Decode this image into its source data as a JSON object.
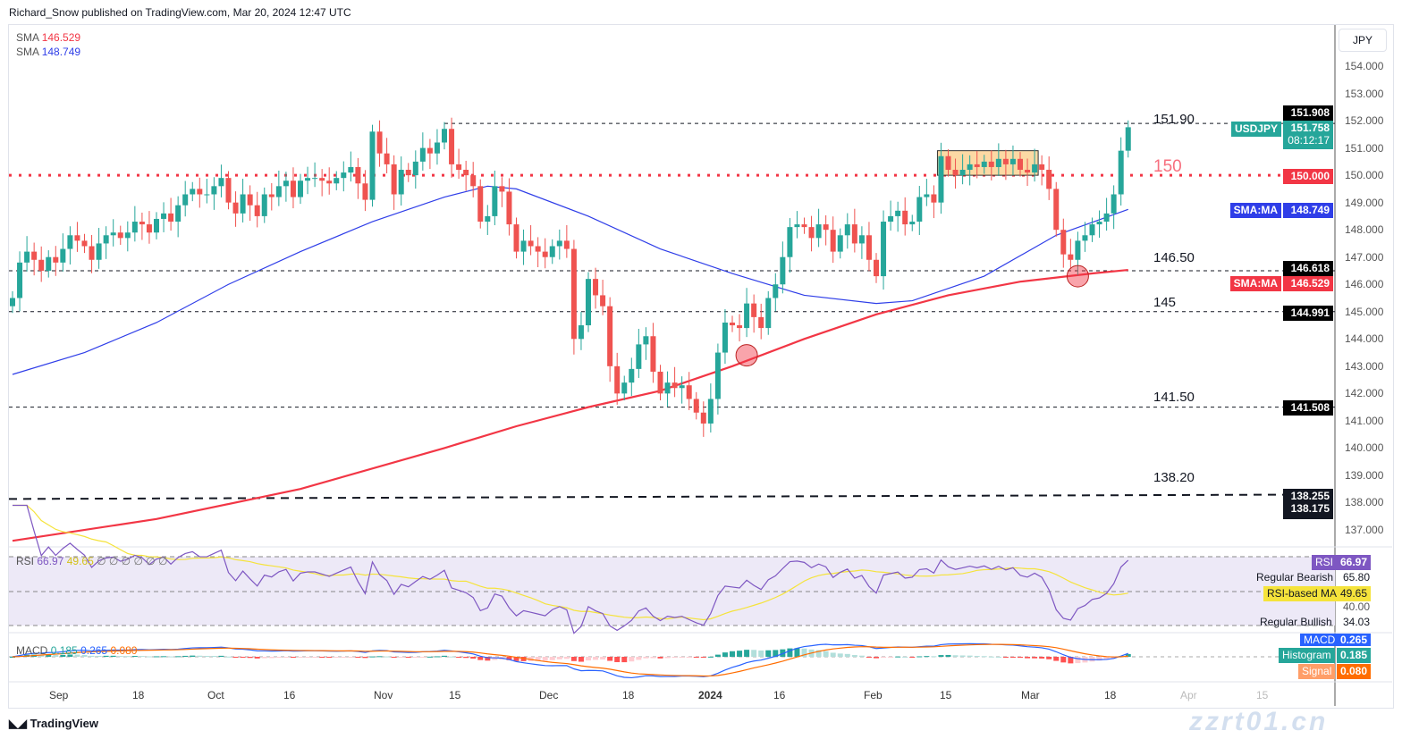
{
  "header": "Richard_Snow published on TradingView.com, Mar 20, 2024 12:47 UTC",
  "footer_logo": "TradingView",
  "watermark": "zzrt01.cn",
  "currency": "JPY",
  "legend": {
    "sma1_label": "SMA",
    "sma1_value": "146.529",
    "sma2_label": "SMA",
    "sma2_value": "148.749"
  },
  "rsi_legend": {
    "label": "RSI",
    "v1": "66.97",
    "v2": "49.65",
    "rest": "∅ ∅ ∅ ∅ ∅ ∅"
  },
  "macd_legend": {
    "label": "MACD",
    "hist": "0.185",
    "macd": "0.265",
    "signal": "0.080"
  },
  "colors": {
    "up": "#26a69a",
    "down": "#ef5350",
    "sma50": "#2f3ee8",
    "sma200": "#f23645",
    "rsi": "#7e57c2",
    "rsima": "#f5e33b"
  },
  "price_ticks": [
    "154.000",
    "153.000",
    "152.000",
    "151.000",
    "150.000",
    "149.000",
    "148.000",
    "147.000",
    "146.000",
    "145.000",
    "144.000",
    "143.000",
    "142.000",
    "141.000",
    "140.000",
    "139.000",
    "138.000",
    "137.000"
  ],
  "tags": {
    "high": "151.908",
    "symbol": "USDJPY",
    "last": "151.758",
    "countdown": "08:12:17",
    "lvl150": "150.000",
    "sma_label": "SMA:MA",
    "sma50": "148.749",
    "lvl1466": "146.618",
    "sma200": "146.529",
    "lvl145": "144.991",
    "lvl1415": "141.508",
    "lvl1382a": "138.255",
    "lvl1382b": "138.175"
  },
  "levels": {
    "l1519": "151.90",
    "l150": "150",
    "l1465": "146.50",
    "l145": "145",
    "l1415": "141.50",
    "l1382": "138.20"
  },
  "rsi_axis": {
    "rsi_tag": "RSI",
    "rsi_val": "66.97",
    "bear_label": "Regular Bearish",
    "bear_val": "65.80",
    "ma_label": "RSI-based MA",
    "ma_val": "49.65",
    "t40": "40.00",
    "bull_label": "Regular Bullish",
    "bull_val": "34.03"
  },
  "macd_axis": {
    "macd_tag": "MACD",
    "macd_val": "0.265",
    "hist_tag": "Histogram",
    "hist_val": "0.185",
    "sig_tag": "Signal",
    "sig_val": "0.080"
  },
  "x_labels": [
    "Sep",
    "18",
    "Oct",
    "16",
    "Nov",
    "15",
    "Dec",
    "18",
    "2024",
    "16",
    "Feb",
    "15",
    "Mar",
    "18",
    "Apr",
    "15"
  ],
  "chart_data": {
    "type": "candlestick",
    "symbol": "USDJPY",
    "ylim": [
      136.6,
      154.8
    ],
    "closes": [
      145.5,
      146.8,
      147.2,
      146.9,
      146.5,
      147.0,
      146.8,
      147.3,
      147.8,
      147.6,
      147.4,
      146.9,
      147.5,
      147.8,
      147.9,
      147.7,
      147.9,
      148.3,
      148.2,
      147.9,
      148.4,
      148.6,
      148.3,
      148.9,
      149.3,
      149.5,
      149.3,
      149.3,
      149.6,
      149.9,
      149.0,
      148.6,
      149.3,
      148.9,
      148.5,
      149.3,
      149.2,
      149.6,
      149.8,
      149.2,
      149.8,
      149.9,
      149.9,
      149.8,
      149.7,
      149.9,
      150.1,
      150.3,
      149.7,
      149.1,
      151.6,
      150.8,
      150.4,
      149.3,
      150.2,
      150.0,
      150.5,
      151.0,
      150.8,
      151.2,
      151.7,
      150.4,
      150.2,
      150.0,
      149.6,
      148.3,
      148.5,
      149.6,
      149.4,
      148.2,
      147.2,
      147.6,
      147.4,
      147.2,
      147.0,
      147.4,
      147.6,
      147.3,
      144.0,
      144.5,
      146.2,
      145.6,
      145.2,
      143.0,
      142.0,
      142.4,
      142.9,
      143.8,
      144.1,
      142.8,
      142.0,
      142.4,
      142.2,
      142.3,
      141.8,
      141.3,
      140.9,
      141.8,
      143.5,
      144.6,
      144.5,
      144.4,
      145.3,
      144.8,
      144.4,
      145.5,
      146.0,
      147.0,
      148.1,
      148.2,
      148.1,
      147.7,
      148.2,
      148.0,
      147.2,
      147.8,
      148.2,
      147.5,
      147.8,
      146.9,
      146.3,
      148.3,
      148.5,
      148.7,
      148.2,
      148.3,
      149.2,
      149.3,
      149.0,
      150.7,
      150.2,
      150.0,
      150.2,
      150.4,
      150.3,
      150.5,
      150.3,
      150.6,
      150.4,
      150.6,
      150.2,
      150.1,
      150.4,
      150.2,
      149.5,
      148.0,
      147.1,
      146.9,
      147.6,
      147.8,
      148.2,
      148.3,
      148.6,
      149.3,
      150.9,
      151.76
    ],
    "sma50": [
      [
        0,
        142.7
      ],
      [
        10,
        143.5
      ],
      [
        20,
        144.6
      ],
      [
        30,
        146.0
      ],
      [
        40,
        147.2
      ],
      [
        50,
        148.3
      ],
      [
        60,
        149.2
      ],
      [
        66,
        149.6
      ],
      [
        70,
        149.5
      ],
      [
        80,
        148.5
      ],
      [
        90,
        147.3
      ],
      [
        100,
        146.4
      ],
      [
        110,
        145.6
      ],
      [
        120,
        145.3
      ],
      [
        125,
        145.4
      ],
      [
        135,
        146.3
      ],
      [
        145,
        147.8
      ],
      [
        155,
        148.75
      ]
    ],
    "sma200": [
      [
        0,
        136.6
      ],
      [
        20,
        137.4
      ],
      [
        40,
        138.5
      ],
      [
        60,
        140.0
      ],
      [
        70,
        140.8
      ],
      [
        80,
        141.5
      ],
      [
        90,
        142.1
      ],
      [
        100,
        143.0
      ],
      [
        110,
        144.0
      ],
      [
        120,
        144.9
      ],
      [
        130,
        145.6
      ],
      [
        140,
        146.1
      ],
      [
        150,
        146.4
      ],
      [
        155,
        146.53
      ]
    ],
    "horizontal_levels": [
      151.9,
      150.0,
      146.5,
      145.0,
      141.5,
      138.2
    ],
    "zone": {
      "from_index": 129,
      "to_index": 142,
      "low": 150.0,
      "high": 150.9
    },
    "markers": [
      {
        "index": 102,
        "price": 143.4
      },
      {
        "index": 148,
        "price": 146.3
      }
    ]
  }
}
